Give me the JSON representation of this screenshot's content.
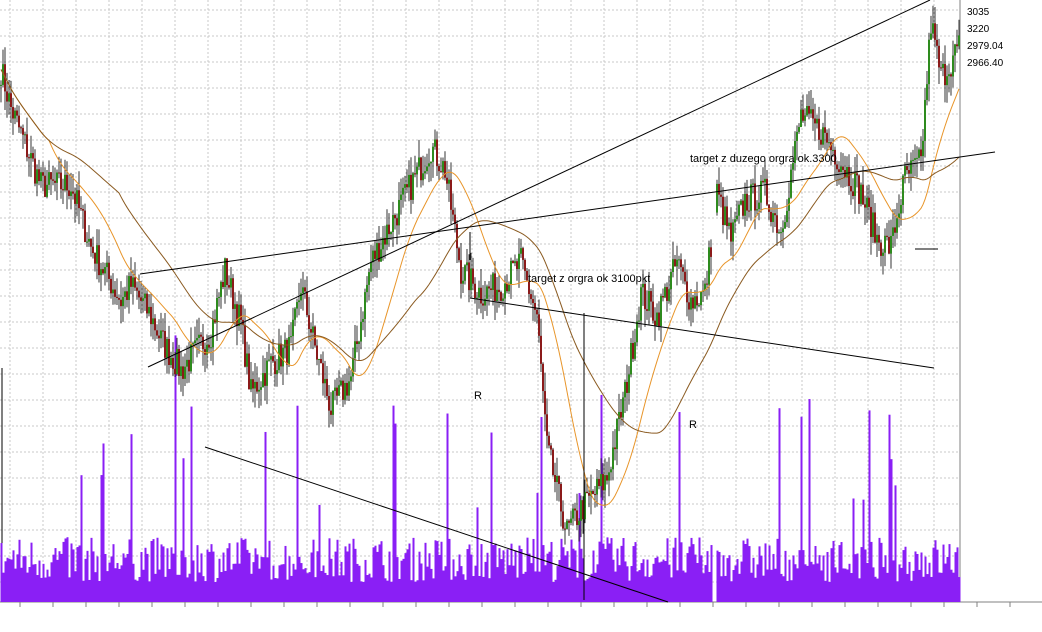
{
  "chart_data": {
    "type": "candlestick",
    "grid": true,
    "colors": {
      "background": "#ffffff",
      "grid": "#c8c8c8",
      "candle_up": "#2e8b1e",
      "candle_down": "#8b1a1a",
      "volume": "#8a1ff5",
      "ma_fast": "#e8952a",
      "ma_slow": "#8a5a20",
      "trendline": "#000000",
      "axis": "#808080"
    },
    "price_labels": [
      {
        "text": "3035",
        "color": "#e8952a"
      },
      {
        "text": "3220",
        "color": "#8a1ff5"
      },
      {
        "text": "2979.04",
        "color": "#e8952a"
      },
      {
        "text": "2966.40",
        "color": "#000000"
      }
    ],
    "annotations": [
      {
        "text": "target z duzego orgra ok.3300"
      },
      {
        "text": "target z orgra ok 3100pkt"
      },
      {
        "text": "R"
      },
      {
        "text": "R"
      }
    ],
    "price_anchors": [
      {
        "i": 0,
        "c": 2840
      },
      {
        "i": 5,
        "c": 2790
      },
      {
        "i": 20,
        "c": 2690
      },
      {
        "i": 35,
        "c": 2690
      },
      {
        "i": 45,
        "c": 2610
      },
      {
        "i": 60,
        "c": 2540
      },
      {
        "i": 65,
        "c": 2560
      },
      {
        "i": 75,
        "c": 2520
      },
      {
        "i": 80,
        "c": 2490
      },
      {
        "i": 90,
        "c": 2450
      },
      {
        "i": 105,
        "c": 2500
      },
      {
        "i": 112,
        "c": 2580
      },
      {
        "i": 120,
        "c": 2510
      },
      {
        "i": 125,
        "c": 2420
      },
      {
        "i": 135,
        "c": 2460
      },
      {
        "i": 145,
        "c": 2480
      },
      {
        "i": 150,
        "c": 2560
      },
      {
        "i": 157,
        "c": 2480
      },
      {
        "i": 165,
        "c": 2400
      },
      {
        "i": 175,
        "c": 2440
      },
      {
        "i": 185,
        "c": 2590
      },
      {
        "i": 195,
        "c": 2640
      },
      {
        "i": 205,
        "c": 2690
      },
      {
        "i": 215,
        "c": 2740
      },
      {
        "i": 222,
        "c": 2710
      },
      {
        "i": 230,
        "c": 2580
      },
      {
        "i": 240,
        "c": 2550
      },
      {
        "i": 250,
        "c": 2560
      },
      {
        "i": 260,
        "c": 2590
      },
      {
        "i": 268,
        "c": 2520
      },
      {
        "i": 273,
        "c": 2350
      },
      {
        "i": 283,
        "c": 2240
      },
      {
        "i": 290,
        "c": 2270
      },
      {
        "i": 303,
        "c": 2310
      },
      {
        "i": 312,
        "c": 2420
      },
      {
        "i": 320,
        "c": 2550
      },
      {
        "i": 328,
        "c": 2520
      },
      {
        "i": 338,
        "c": 2590
      },
      {
        "i": 345,
        "c": 2540
      },
      {
        "i": 352,
        "c": 2550
      },
      {
        "i": 358,
        "c": 2680
      },
      {
        "i": 365,
        "c": 2620
      },
      {
        "i": 372,
        "c": 2670
      },
      {
        "i": 382,
        "c": 2680
      },
      {
        "i": 390,
        "c": 2630
      },
      {
        "i": 400,
        "c": 2780
      },
      {
        "i": 410,
        "c": 2760
      },
      {
        "i": 420,
        "c": 2720
      },
      {
        "i": 430,
        "c": 2680
      },
      {
        "i": 438,
        "c": 2620
      },
      {
        "i": 445,
        "c": 2610
      },
      {
        "i": 452,
        "c": 2700
      },
      {
        "i": 460,
        "c": 2720
      },
      {
        "i": 465,
        "c": 2900
      },
      {
        "i": 470,
        "c": 2830
      },
      {
        "i": 475,
        "c": 2850
      },
      {
        "i": 479,
        "c": 2870
      }
    ],
    "gap": {
      "from": 355,
      "to": 358
    }
  }
}
